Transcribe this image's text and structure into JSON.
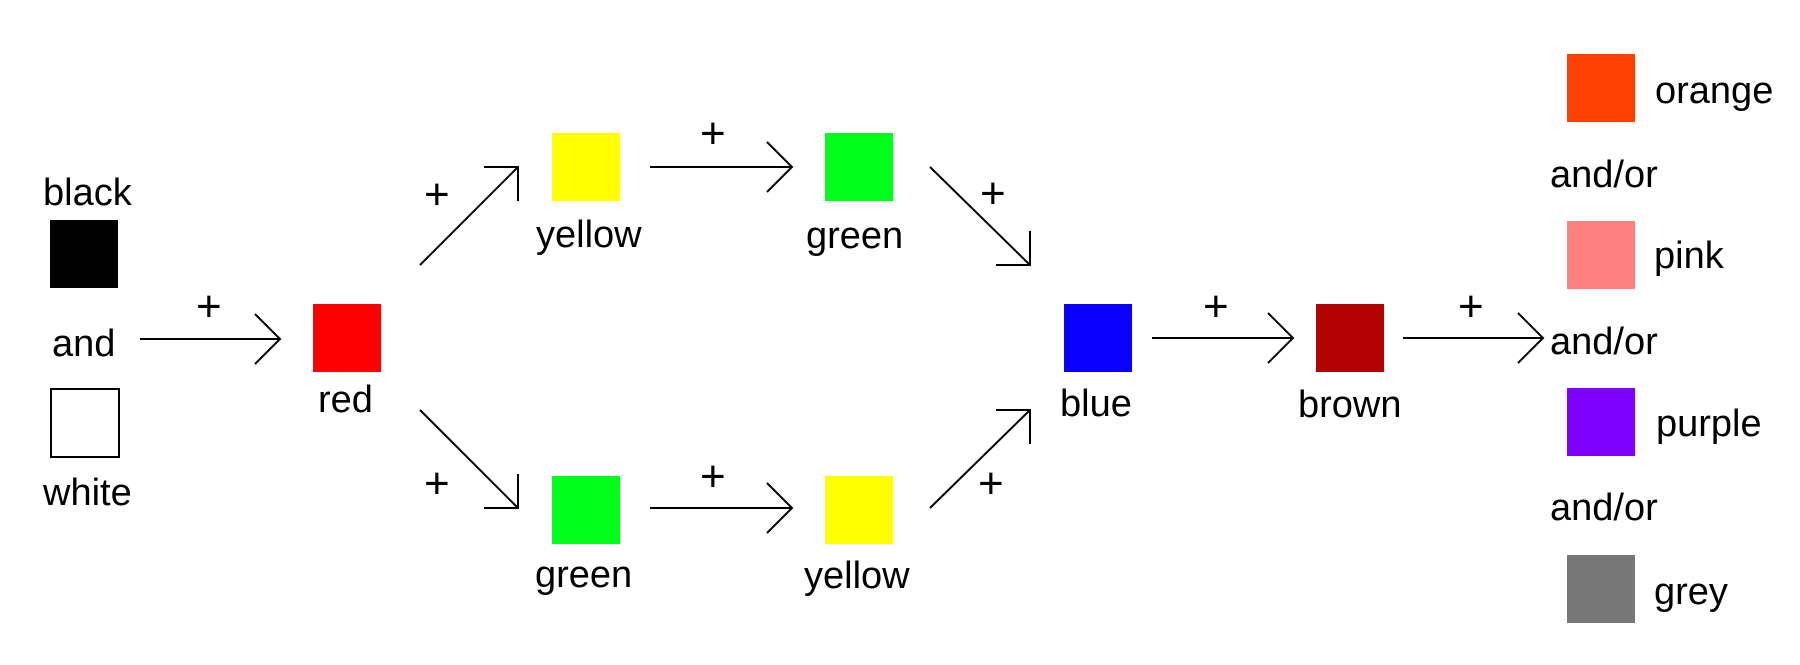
{
  "colors": {
    "black": "#000000",
    "white": "#ffffff",
    "red": "#ff0000",
    "yellow": "#ffff00",
    "green": "#00ff1a",
    "blue": "#0a00ff",
    "brown": "#b30000",
    "orange": "#ff4000",
    "pink": "#ff8080",
    "purple": "#8000ff",
    "grey": "#777777",
    "outline": "#000000"
  },
  "labels": {
    "black": "black",
    "and": "and",
    "white": "white",
    "red": "red",
    "yellow_top": "yellow",
    "green_top": "green",
    "green_bottom": "green",
    "yellow_bottom": "yellow",
    "blue": "blue",
    "brown": "brown",
    "orange": "orange",
    "andor_1": "and/or",
    "pink": "pink",
    "andor_2": "and/or",
    "purple": "purple",
    "andor_3": "and/or",
    "grey": "grey"
  },
  "plus_symbol": "+"
}
